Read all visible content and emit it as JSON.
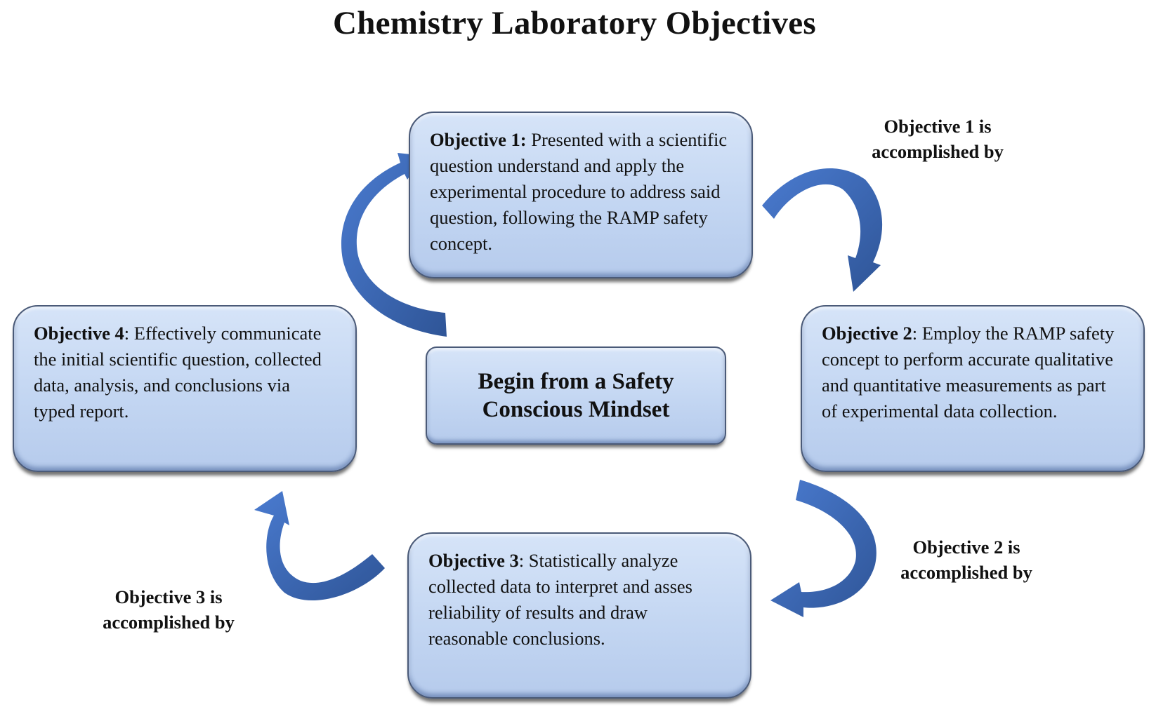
{
  "title": "Chemistry Laboratory Objectives",
  "center": {
    "line1": "Begin from a Safety",
    "line2": "Conscious Mindset"
  },
  "objectives": [
    {
      "heading": "Objective 1:",
      "text": " Presented with a scientific question understand and apply the experimental procedure to address said question, following the RAMP safety concept."
    },
    {
      "heading": "Objective 2",
      "text": ": Employ the RAMP safety concept to perform accurate qualitative and quantitative measurements as part of experimental data collection."
    },
    {
      "heading": "Objective 3",
      "text": ": Statistically analyze collected data to interpret and asses reliability of  results and draw reasonable conclusions."
    },
    {
      "heading": "Objective 4",
      "text": ": Effectively communicate the initial scientific question, collected data, analysis, and conclusions via typed report."
    }
  ],
  "labels": [
    {
      "line1": "Objective 1 is",
      "line2": "accomplished by"
    },
    {
      "line1": "Objective 2 is",
      "line2": "accomplished by"
    },
    {
      "line1": "Objective 3 is",
      "line2": "accomplished by"
    }
  ],
  "colors": {
    "arrow": "#4472c4",
    "box_fill": "#c3d6f2",
    "box_border": "#4a5a78"
  }
}
